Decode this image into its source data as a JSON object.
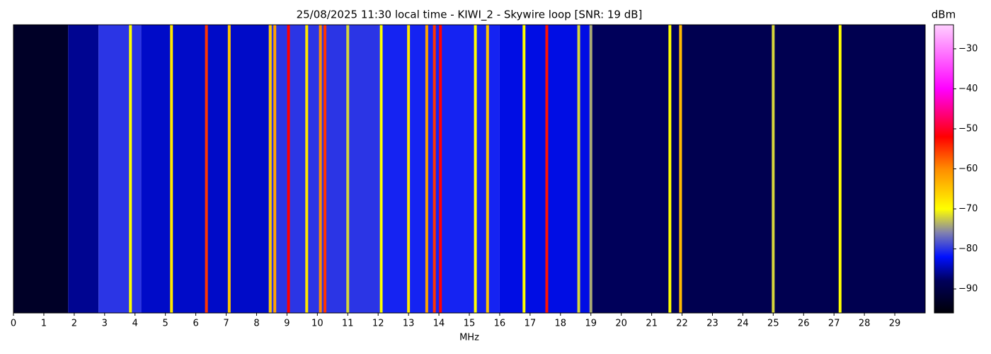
{
  "chart_data": {
    "type": "spectrogram",
    "title": "25/08/2025 11:30 local time - KIWI_2 - Skywire loop [SNR: 19 dB]",
    "xlabel": "MHz",
    "colorbar_label": "dBm",
    "xlim": [
      0,
      30
    ],
    "xticks": [
      0,
      1,
      2,
      3,
      4,
      5,
      6,
      7,
      8,
      9,
      10,
      11,
      12,
      13,
      14,
      15,
      16,
      17,
      18,
      19,
      20,
      21,
      22,
      23,
      24,
      25,
      26,
      27,
      28,
      29
    ],
    "clim": [
      -96,
      -24
    ],
    "cticks": [
      {
        "value": -90,
        "label": "−90"
      },
      {
        "value": -80,
        "label": "−80"
      },
      {
        "value": -70,
        "label": "−70"
      },
      {
        "value": -60,
        "label": "−60"
      },
      {
        "value": -50,
        "label": "−50"
      },
      {
        "value": -40,
        "label": "−40"
      },
      {
        "value": -30,
        "label": "−30"
      }
    ],
    "colormap": [
      {
        "value": -96,
        "color": "#000008"
      },
      {
        "value": -88,
        "color": "#00005a"
      },
      {
        "value": -82,
        "color": "#0010ff"
      },
      {
        "value": -76,
        "color": "#8080b0"
      },
      {
        "value": -70,
        "color": "#ffff00"
      },
      {
        "value": -60,
        "color": "#ff8c00"
      },
      {
        "value": -52,
        "color": "#ff0000"
      },
      {
        "value": -40,
        "color": "#ff00ff"
      },
      {
        "value": -24,
        "color": "#ffd0ff"
      }
    ],
    "noise_floor": {
      "bins": [
        0,
        1.8,
        2.8,
        4.2,
        8.4,
        12,
        16,
        19,
        22,
        30
      ],
      "values": [
        -93,
        -86,
        -80,
        -84,
        -80,
        -81,
        -83,
        -88,
        -89
      ]
    },
    "signals": {
      "freq": [
        3.85,
        5.2,
        6.35,
        7.1,
        8.45,
        8.6,
        9.05,
        9.65,
        10.1,
        10.25,
        11.0,
        12.1,
        13.0,
        13.6,
        13.85,
        14.05,
        15.2,
        15.6,
        16.8,
        17.55,
        18.6,
        19.0,
        21.6,
        21.95,
        25.0,
        27.2
      ],
      "values": [
        -70,
        -68,
        -55,
        -65,
        -65,
        -62,
        -52,
        -68,
        -60,
        -55,
        -72,
        -70,
        -68,
        -62,
        -55,
        -52,
        -70,
        -65,
        -70,
        -53,
        -72,
        -74,
        -70,
        -64,
        -72,
        -70
      ]
    }
  }
}
